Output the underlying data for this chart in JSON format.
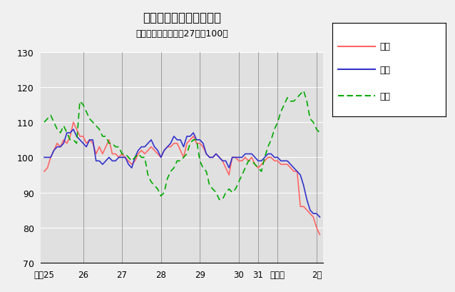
{
  "title": "鳥取県鉱工業指数の推移",
  "subtitle": "（季節調整済、平成27年＝100）",
  "title_fontsize": 12,
  "subtitle_fontsize": 9,
  "ylim": [
    70,
    130
  ],
  "yticks": [
    70,
    80,
    90,
    100,
    110,
    120,
    130
  ],
  "plot_bg_color": "#e0e0e0",
  "fig_bg_color": "#f0f0f0",
  "xtick_labels": [
    "平成25",
    "26",
    "27",
    "28",
    "29",
    "30",
    "31",
    "令和元",
    "2年"
  ],
  "legend_labels": [
    "生産",
    "出荷",
    "在庫"
  ],
  "prod_color": "#ff6666",
  "ship_color": "#3333cc",
  "inv_color": "#00aa00",
  "line_production": [
    96,
    97,
    100,
    102,
    104,
    103,
    105,
    104,
    106,
    110,
    108,
    106,
    106,
    104,
    105,
    104,
    101,
    103,
    101,
    103,
    105,
    101,
    101,
    100,
    101,
    100,
    99,
    98,
    99,
    101,
    102,
    101,
    102,
    103,
    102,
    101,
    100,
    102,
    103,
    103,
    104,
    104,
    102,
    100,
    104,
    105,
    106,
    104,
    104,
    103,
    101,
    100,
    100,
    101,
    100,
    99,
    97,
    95,
    100,
    100,
    99,
    99,
    100,
    99,
    100,
    98,
    97,
    98,
    99,
    100,
    100,
    99,
    99,
    98,
    98,
    98,
    97,
    96,
    96,
    86,
    86,
    85,
    84,
    83,
    80,
    78
  ],
  "line_shipment": [
    100,
    100,
    100,
    102,
    103,
    103,
    104,
    107,
    107,
    108,
    106,
    105,
    104,
    103,
    105,
    105,
    99,
    99,
    98,
    99,
    100,
    99,
    99,
    100,
    100,
    100,
    98,
    97,
    100,
    102,
    103,
    103,
    104,
    105,
    103,
    102,
    100,
    102,
    103,
    104,
    106,
    105,
    105,
    103,
    106,
    106,
    107,
    105,
    105,
    104,
    101,
    100,
    100,
    101,
    100,
    99,
    99,
    97,
    100,
    100,
    100,
    100,
    101,
    101,
    101,
    100,
    99,
    99,
    100,
    101,
    101,
    100,
    100,
    99,
    99,
    99,
    98,
    97,
    96,
    95,
    92,
    88,
    85,
    84,
    84,
    83
  ],
  "line_inventory": [
    110,
    111,
    112,
    110,
    108,
    107,
    109,
    107,
    105,
    105,
    104,
    116,
    115,
    113,
    111,
    110,
    109,
    108,
    106,
    106,
    104,
    104,
    103,
    103,
    101,
    101,
    100,
    99,
    100,
    101,
    100,
    100,
    95,
    93,
    92,
    91,
    89,
    90,
    94,
    96,
    97,
    99,
    99,
    100,
    101,
    104,
    105,
    105,
    99,
    97,
    96,
    92,
    91,
    90,
    88,
    88,
    90,
    91,
    90,
    91,
    93,
    95,
    97,
    99,
    99,
    98,
    97,
    96,
    100,
    103,
    105,
    108,
    110,
    113,
    115,
    117,
    116,
    116,
    117,
    118,
    119,
    116,
    111,
    110,
    108,
    107
  ],
  "x_tick_positions": [
    0,
    12,
    24,
    36,
    48,
    60,
    66,
    72,
    84
  ],
  "n_points": 86
}
